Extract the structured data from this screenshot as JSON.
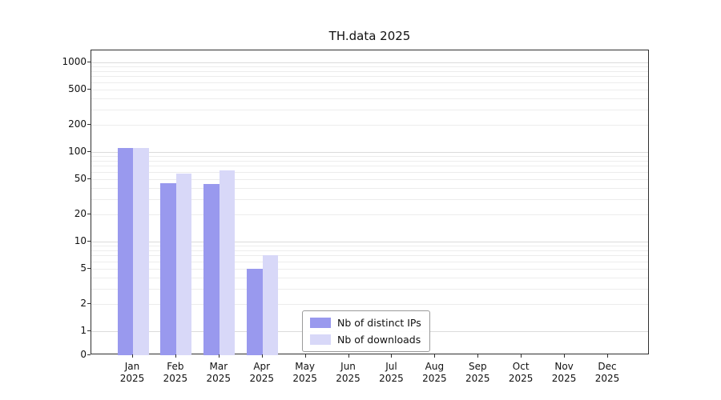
{
  "chart_data": {
    "type": "bar",
    "title": "TH.data 2025",
    "categories": [
      "Jan",
      "Feb",
      "Mar",
      "Apr",
      "May",
      "Jun",
      "Jul",
      "Aug",
      "Sep",
      "Oct",
      "Nov",
      "Dec"
    ],
    "year_label": "2025",
    "yticks": [
      0,
      1,
      2,
      5,
      10,
      20,
      50,
      100,
      200,
      500,
      1000
    ],
    "yscale": "symlog",
    "ylim": [
      0,
      1200
    ],
    "grid": "horizontal major and log-minor gridlines",
    "legend_position": "lower center",
    "series": [
      {
        "name": "Nb of distinct IPs",
        "color": "#9999ee",
        "values": [
          110,
          45,
          44,
          5,
          0,
          0,
          0,
          0,
          0,
          0,
          0,
          0
        ]
      },
      {
        "name": "Nb of downloads",
        "color": "#d8d8f8",
        "values": [
          110,
          57,
          62,
          7,
          0,
          0,
          0,
          0,
          0,
          0,
          0,
          0
        ]
      }
    ]
  }
}
